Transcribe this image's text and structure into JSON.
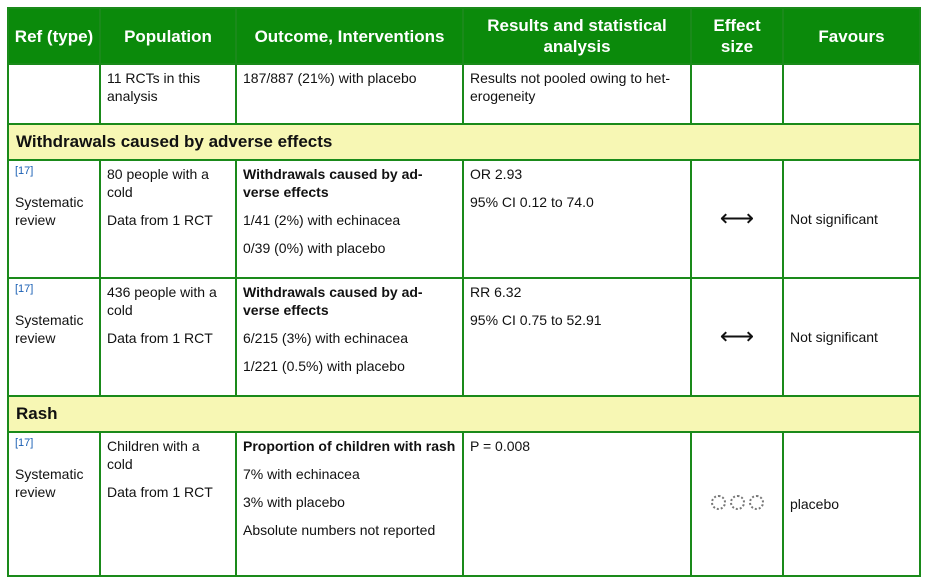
{
  "header": {
    "ref": "Ref (type)",
    "population": "Population",
    "outcome": "Outcome, Interventions",
    "results": "Results and statistical analysis",
    "effect": "Effect size",
    "favours": "Favours"
  },
  "row_top": {
    "population": "11 RCTs in this analysis",
    "outcome": "187/887 (21%) with placebo",
    "results": "Results not pooled owing to het-erogeneity"
  },
  "section1": "Withdrawals caused by adverse effects",
  "row_a": {
    "ref": "[17]",
    "type": "Systematic review",
    "population": "80 people with a cold",
    "population_data": "Data from 1 RCT",
    "outcome_title": "Withdrawals caused by ad-verse effects",
    "outcome_1": "1/41 (2%) with echinacea",
    "outcome_2": "0/39 (0%) with placebo",
    "results_1": "OR 2.93",
    "results_2": "95% CI 0.12 to 74.0",
    "effect_icon": "double-arrow-icon",
    "favours": "Not significant"
  },
  "row_b": {
    "ref": "[17]",
    "type": "Systematic review",
    "population": "436 people with a cold",
    "population_data": "Data from 1 RCT",
    "outcome_title": "Withdrawals caused by ad-verse effects",
    "outcome_1": "6/215 (3%) with echinacea",
    "outcome_2": "1/221 (0.5%) with placebo",
    "results_1": "RR 6.32",
    "results_2": "95% CI 0.75 to 52.91",
    "effect_icon": "double-arrow-icon",
    "favours": "Not significant"
  },
  "section2": "Rash",
  "row_c": {
    "ref": "[17]",
    "type": "Systematic review",
    "population": "Children with a cold",
    "population_data": "Data from 1 RCT",
    "outcome_title": "Proportion of children with rash",
    "outcome_1": "7% with echinacea",
    "outcome_2": "3% with placebo",
    "outcome_3": "Absolute numbers not reported",
    "results_1": "P = 0.008",
    "effect_icon": "three-empty-circles-icon",
    "favours": "placebo"
  }
}
